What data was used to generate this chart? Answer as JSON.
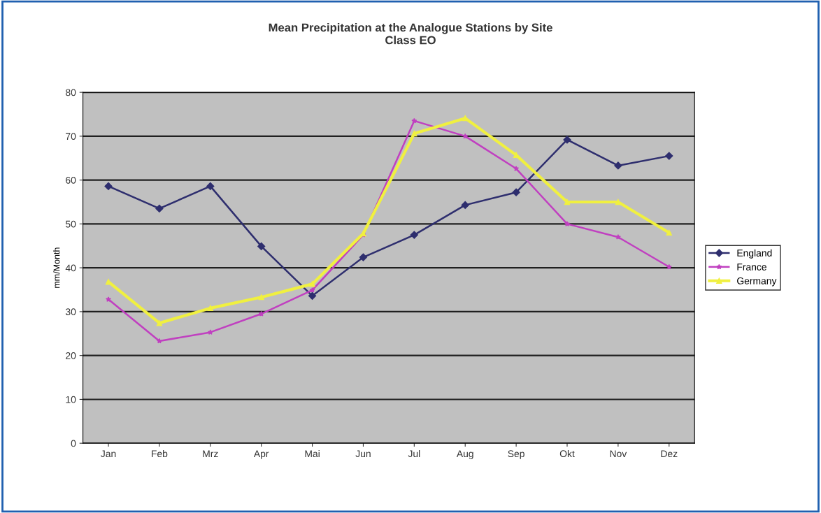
{
  "chart_data": {
    "type": "line",
    "title": "Mean Precipitation at the Analogue Stations by Site\nClass EO",
    "ylabel": "mm/Month",
    "categories": [
      "Jan",
      "Feb",
      "Mrz",
      "Apr",
      "Mai",
      "Jun",
      "Jul",
      "Aug",
      "Sep",
      "Okt",
      "Nov",
      "Dez"
    ],
    "series": [
      {
        "name": "England",
        "color": "#2e2e6e",
        "marker": "diamond",
        "values": [
          58.6,
          53.5,
          58.6,
          44.9,
          33.6,
          42.4,
          47.5,
          54.3,
          57.2,
          69.2,
          63.3,
          65.5
        ]
      },
      {
        "name": "France",
        "color": "#c040c0",
        "marker": "star",
        "values": [
          32.8,
          23.3,
          25.3,
          29.5,
          34.9,
          47.5,
          73.5,
          70,
          62.6,
          50,
          47,
          40.2
        ]
      },
      {
        "name": "Germany",
        "color": "#f0f040",
        "marker": "triangle",
        "values": [
          36.8,
          27.4,
          30.8,
          33.3,
          36.3,
          47.8,
          70.6,
          74.1,
          65.7,
          55,
          55,
          48
        ]
      }
    ],
    "ylim": [
      0,
      80
    ],
    "yticks": [
      0,
      10,
      20,
      30,
      40,
      50,
      60,
      70,
      80
    ],
    "grid": "y",
    "legend": "right"
  }
}
